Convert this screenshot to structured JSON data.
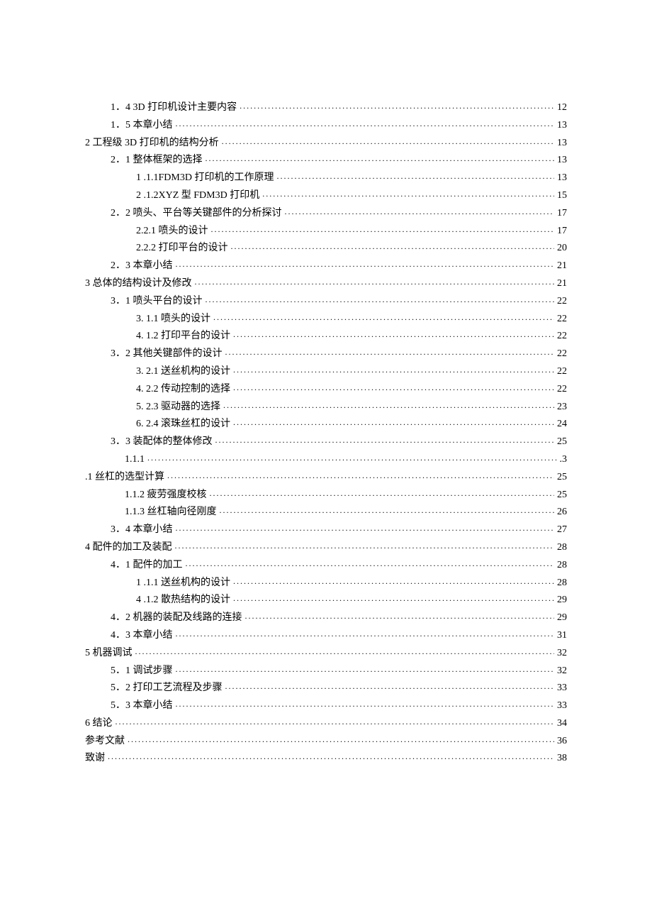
{
  "toc": [
    {
      "label": "1．4  3D 打印机设计主要内容",
      "page": "12",
      "indent": 1
    },
    {
      "label": "1．5   本章小结",
      "page": "13",
      "indent": 1
    },
    {
      "label": "2 工程级 3D 打印机的结构分析",
      "page": "13",
      "indent": 0
    },
    {
      "label": "2．1   整体框架的选择",
      "page": "13",
      "indent": 1
    },
    {
      "label": "1  .1.1FDM3D 打印机的工作原理",
      "page": "13",
      "indent": 2
    },
    {
      "label": "2  .1.2XYZ 型 FDM3D 打印机",
      "page": "15",
      "indent": 2
    },
    {
      "label": "2．2   喷头、平台等关键部件的分析探讨",
      "page": "17",
      "indent": 1
    },
    {
      "label": "2.2.1 喷头的设计",
      "page": "17",
      "indent": 2
    },
    {
      "label": "2.2.2 打印平台的设计",
      "page": "20",
      "indent": 2
    },
    {
      "label": "2．3 本章小结",
      "page": "21",
      "indent": 1
    },
    {
      "label": "3 总体的结构设计及修改",
      "page": "21",
      "indent": 0
    },
    {
      "label": "3．1 喷头平台的设计",
      "page": "22",
      "indent": 1
    },
    {
      "label": "3.  1.1 喷头的设计",
      "page": "22",
      "indent": 2
    },
    {
      "label": "4.  1.2 打印平台的设计",
      "page": "22",
      "indent": 2
    },
    {
      "label": "3．2   其他关键部件的设计",
      "page": "22",
      "indent": 1
    },
    {
      "label": "3.  2.1 送丝机构的设计",
      "page": "22",
      "indent": 2
    },
    {
      "label": "4.  2.2 传动控制的选择",
      "page": "22",
      "indent": 2
    },
    {
      "label": "5.  2.3 驱动器的选择",
      "page": "23",
      "indent": 2
    },
    {
      "label": "6.  2.4 滚珠丝杠的设计",
      "page": "24",
      "indent": 2
    },
    {
      "label": "3．3   装配体的整体修改",
      "page": "25",
      "indent": 1
    },
    {
      "label": "1.1.1 ",
      "page": ".3",
      "indent": 3,
      "smalldots": true
    },
    {
      "label": ".1 丝杠的选型计算",
      "page": "25",
      "indent": 0
    },
    {
      "label": "1.1.2    疲劳强度校核",
      "page": "25",
      "indent": 3
    },
    {
      "label": "1.1.3    丝杠轴向径刚度",
      "page": "26",
      "indent": 3
    },
    {
      "label": "3．4 本章小结",
      "page": "27",
      "indent": 1
    },
    {
      "label": "4 配件的加工及装配",
      "page": "28",
      "indent": 0
    },
    {
      "label": "4．1   配件的加工",
      "page": "28",
      "indent": 1
    },
    {
      "label": "1  .1.1 送丝机构的设计",
      "page": "28",
      "indent": 2
    },
    {
      "label": "4  .1.2 散热结构的设计",
      "page": "29",
      "indent": 2
    },
    {
      "label": "4．2   机器的装配及线路的连接",
      "page": "29",
      "indent": 1
    },
    {
      "label": "4．3   本章小结",
      "page": "31",
      "indent": 1
    },
    {
      "label": "5 机器调试",
      "page": "32",
      "indent": 0
    },
    {
      "label": "5．1   调试步骤",
      "page": "32",
      "indent": 1
    },
    {
      "label": "5．2   打印工艺流程及步骤",
      "page": "33",
      "indent": 1
    },
    {
      "label": "5．3   本章小结",
      "page": "33",
      "indent": 1
    },
    {
      "label": "6 结论",
      "page": "34",
      "indent": 0
    },
    {
      "label": "参考文献",
      "page": "36",
      "indent": 0
    },
    {
      "label": "致谢",
      "page": "38",
      "indent": 0
    }
  ]
}
